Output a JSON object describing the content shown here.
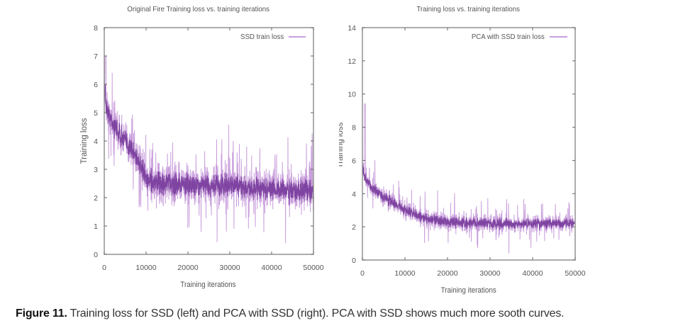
{
  "chart_data": [
    {
      "type": "line",
      "title": "Original Fire Training loss vs. training iterations",
      "xlabel": "Training iterations",
      "ylabel": "Training loss",
      "xlim": [
        0,
        50000
      ],
      "ylim": [
        0,
        8
      ],
      "xticks": [
        "0",
        "10000",
        "20000",
        "30000",
        "40000",
        "50000"
      ],
      "yticks": [
        "0",
        "1",
        "2",
        "3",
        "4",
        "5",
        "6",
        "7",
        "8"
      ],
      "grid": false,
      "legend": {
        "placement": "top-right",
        "entries": [
          "SSD train loss"
        ]
      },
      "series": [
        {
          "name": "SSD train loss",
          "color": "#7b3f9e",
          "light_color": "#c99fdc",
          "trend_x": [
            0,
            500,
            2000,
            5000,
            8000,
            10000,
            15000,
            20000,
            30000,
            40000,
            50000
          ],
          "trend_y": [
            5.8,
            5.2,
            4.6,
            4.0,
            3.4,
            2.6,
            2.5,
            2.45,
            2.4,
            2.3,
            2.2
          ],
          "noise_amplitude": 1.0,
          "peak": {
            "x": 300,
            "y": 7.0
          }
        }
      ]
    },
    {
      "type": "line",
      "title": "Training loss vs. training iterations",
      "xlabel": "Training iterations",
      "ylabel": "Training loss",
      "xlim": [
        0,
        50000
      ],
      "ylim": [
        0,
        14
      ],
      "xticks": [
        "0",
        "10000",
        "20000",
        "30000",
        "40000",
        "50000"
      ],
      "yticks": [
        "0",
        "2",
        "4",
        "6",
        "8",
        "10",
        "12",
        "14"
      ],
      "grid": false,
      "legend": {
        "placement": "top-right",
        "entries": [
          "PCA with SSD train loss"
        ]
      },
      "series": [
        {
          "name": "PCA with SSD train loss",
          "color": "#7b3f9e",
          "light_color": "#c99fdc",
          "trend_x": [
            0,
            500,
            2000,
            5000,
            10000,
            15000,
            20000,
            30000,
            40000,
            50000
          ],
          "trend_y": [
            5.6,
            5.0,
            4.4,
            3.8,
            3.0,
            2.5,
            2.3,
            2.2,
            2.2,
            2.2
          ],
          "noise_amplitude": 0.8,
          "peak": {
            "x": 600,
            "y": 9.4
          }
        }
      ]
    }
  ],
  "caption": {
    "label": "Figure 11.",
    "text": " Training loss for SSD (left) and PCA with SSD (right). PCA with SSD shows much more sooth curves."
  }
}
